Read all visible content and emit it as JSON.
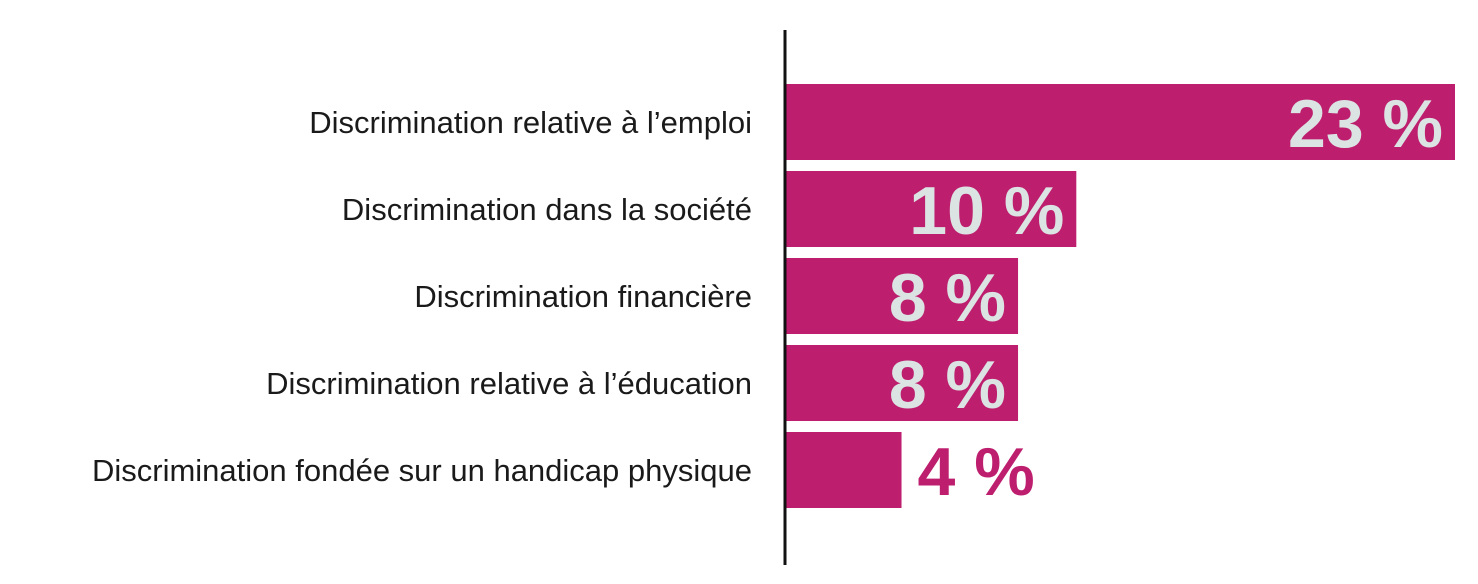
{
  "chart_data": {
    "type": "bar",
    "orientation": "horizontal",
    "categories": [
      "Discrimination relative à l’emploi",
      "Discrimination dans la société",
      "Discrimination financière",
      "Discrimination relative à l’éducation",
      "Discrimination fondée sur un handicap physique"
    ],
    "values": [
      23,
      10,
      8,
      8,
      4
    ],
    "value_labels": [
      "23 %",
      "10 %",
      "8 %",
      "8 %",
      "4 %"
    ],
    "unit": "%",
    "title": "",
    "xlabel": "",
    "ylabel": "",
    "xlim": [
      0,
      23
    ],
    "grid": false,
    "legend": "none"
  },
  "colors": {
    "bar": "#be1e6e",
    "label_inside": "#dbe3e3",
    "label_outside": "#be1e6e",
    "axis": "#111111",
    "category_text": "#1a1a1a"
  }
}
